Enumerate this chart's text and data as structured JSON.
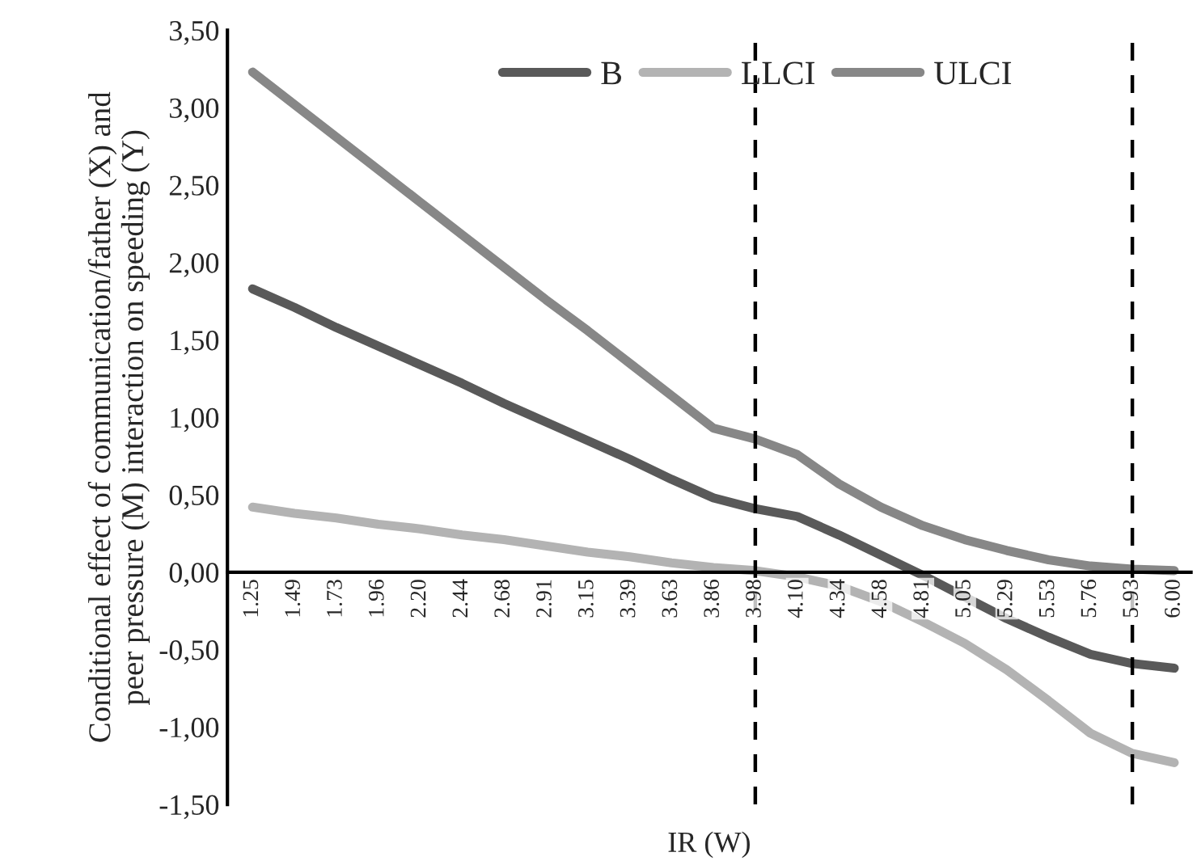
{
  "chart_data": {
    "type": "line",
    "xlabel": "IR (W)",
    "ylabel": "Conditional effect of communication/father (X) and\npeer pressure (M) interaction on speeding (Y)",
    "categories": [
      "1.25",
      "1.49",
      "1.73",
      "1.96",
      "2.20",
      "2.44",
      "2.68",
      "2.91",
      "3.15",
      "3.39",
      "3.63",
      "3.86",
      "3.98",
      "4.10",
      "4.34",
      "4.58",
      "4.81",
      "5.05",
      "5.29",
      "5.53",
      "5.76",
      "5.93",
      "6.00"
    ],
    "series": [
      {
        "name": "B",
        "color": "#595959",
        "values": [
          1.83,
          1.71,
          1.58,
          1.46,
          1.34,
          1.22,
          1.09,
          0.97,
          0.85,
          0.73,
          0.6,
          0.48,
          0.41,
          0.36,
          0.24,
          0.11,
          -0.02,
          -0.16,
          -0.3,
          -0.42,
          -0.53,
          -0.59,
          -0.62
        ]
      },
      {
        "name": "LLCI",
        "color": "#b3b3b3",
        "values": [
          0.42,
          0.38,
          0.35,
          0.31,
          0.28,
          0.24,
          0.21,
          0.17,
          0.13,
          0.1,
          0.06,
          0.03,
          0.01,
          -0.03,
          -0.09,
          -0.19,
          -0.32,
          -0.46,
          -0.63,
          -0.83,
          -1.04,
          -1.17,
          -1.23
        ]
      },
      {
        "name": "ULCI",
        "color": "#878787",
        "values": [
          3.23,
          3.02,
          2.81,
          2.6,
          2.39,
          2.18,
          1.97,
          1.76,
          1.56,
          1.35,
          1.14,
          0.93,
          0.86,
          0.76,
          0.57,
          0.42,
          0.3,
          0.21,
          0.14,
          0.08,
          0.04,
          0.02,
          0.01
        ]
      }
    ],
    "ylim": [
      -1.5,
      3.5
    ],
    "yticks": [
      {
        "value": -1.5,
        "label": "-1,50"
      },
      {
        "value": -1.0,
        "label": "-1,00"
      },
      {
        "value": -0.5,
        "label": "-0,50"
      },
      {
        "value": 0,
        "label": "0,00"
      },
      {
        "value": 0.5,
        "label": "0,50"
      },
      {
        "value": 1.0,
        "label": "1,00"
      },
      {
        "value": 1.5,
        "label": "1,50"
      },
      {
        "value": 2.0,
        "label": "2,00"
      },
      {
        "value": 2.5,
        "label": "2,50"
      },
      {
        "value": 3.0,
        "label": "3,00"
      },
      {
        "value": 3.5,
        "label": "3,50"
      }
    ],
    "ref_lines": [
      {
        "axis": "x",
        "value": "3.98",
        "color": "#000000",
        "line_style": "dashed"
      },
      {
        "axis": "x",
        "value": "5.93",
        "color": "#000000",
        "line_style": "dashed"
      }
    ],
    "legend": "top",
    "grid": false,
    "marker": "none",
    "line_style": "solid"
  }
}
